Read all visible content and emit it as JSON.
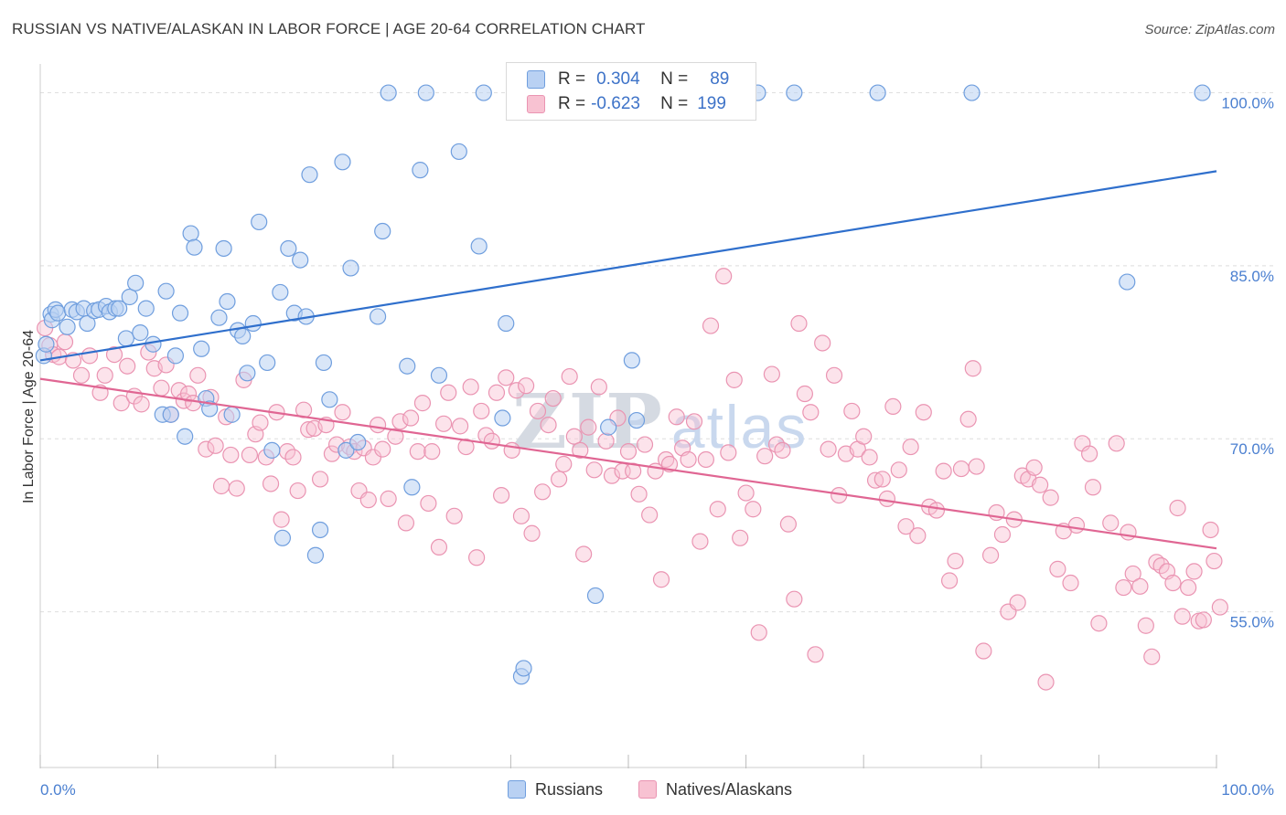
{
  "title": "RUSSIAN VS NATIVE/ALASKAN IN LABOR FORCE | AGE 20-64 CORRELATION CHART",
  "source": "Source: ZipAtlas.com",
  "colors": {
    "russians_fill": "#b9d1f3",
    "russians_stroke": "#6f9ede",
    "russians_line": "#2f6fcc",
    "natives_fill": "#f8c2d2",
    "natives_stroke": "#ea94b2",
    "natives_line": "#e06693",
    "tick_text": "#4a7fd0",
    "grid": "#dedede"
  },
  "legend": {
    "rows": [
      {
        "r_label": "R =",
        "r_value": "0.304",
        "n_label": "N =",
        "n_value": "89"
      },
      {
        "r_label": "R =",
        "r_value": "-0.623",
        "n_label": "N =",
        "n_value": "199"
      }
    ]
  },
  "bottom_legend": [
    "Russians",
    "Natives/Alaskans"
  ],
  "watermark": {
    "zip": "ZIP",
    "atlas": "atlas"
  },
  "chart_data": {
    "type": "scatter",
    "title": "RUSSIAN VS NATIVE/ALASKAN IN LABOR FORCE | AGE 20-64 CORRELATION CHART",
    "xlabel": "",
    "ylabel": "In Labor Force | Age 20-64",
    "xlim": [
      0,
      100
    ],
    "ylim": [
      41.5,
      102.5
    ],
    "x_tick_labels": [
      "0.0%",
      "100.0%"
    ],
    "y_ticks": [
      55,
      70,
      85,
      100
    ],
    "y_tick_labels": [
      "55.0%",
      "70.0%",
      "85.0%",
      "100.0%"
    ],
    "grid": true,
    "legend_position": "top-center",
    "series": [
      {
        "name": "Russians",
        "R": 0.304,
        "N": 89,
        "trend": {
          "x": [
            0,
            100
          ],
          "y": [
            76.8,
            93.2
          ]
        },
        "points": [
          [
            0.3,
            77.2
          ],
          [
            0.5,
            78.2
          ],
          [
            0.9,
            80.8
          ],
          [
            1.0,
            80.3
          ],
          [
            1.3,
            81.2
          ],
          [
            1.5,
            80.9
          ],
          [
            2.3,
            79.7
          ],
          [
            2.7,
            81.2
          ],
          [
            3.1,
            81.0
          ],
          [
            3.7,
            81.3
          ],
          [
            4.0,
            80.0
          ],
          [
            4.6,
            81.1
          ],
          [
            5.0,
            81.2
          ],
          [
            5.6,
            81.5
          ],
          [
            5.9,
            81.0
          ],
          [
            6.4,
            81.3
          ],
          [
            6.7,
            81.3
          ],
          [
            7.3,
            78.7
          ],
          [
            7.6,
            82.3
          ],
          [
            8.1,
            83.5
          ],
          [
            8.5,
            79.2
          ],
          [
            9.0,
            81.3
          ],
          [
            9.6,
            78.2
          ],
          [
            10.4,
            72.1
          ],
          [
            10.7,
            82.8
          ],
          [
            11.1,
            72.1
          ],
          [
            11.5,
            77.2
          ],
          [
            11.9,
            80.9
          ],
          [
            12.3,
            70.2
          ],
          [
            12.8,
            87.8
          ],
          [
            13.1,
            86.6
          ],
          [
            13.7,
            77.8
          ],
          [
            14.1,
            73.5
          ],
          [
            14.4,
            72.6
          ],
          [
            15.2,
            80.5
          ],
          [
            15.6,
            86.5
          ],
          [
            15.9,
            81.9
          ],
          [
            16.3,
            72.1
          ],
          [
            16.8,
            79.4
          ],
          [
            17.2,
            78.9
          ],
          [
            17.6,
            75.7
          ],
          [
            18.1,
            80.0
          ],
          [
            18.6,
            88.8
          ],
          [
            19.3,
            76.6
          ],
          [
            19.7,
            69.0
          ],
          [
            20.4,
            82.7
          ],
          [
            20.6,
            61.4
          ],
          [
            21.1,
            86.5
          ],
          [
            21.6,
            80.9
          ],
          [
            22.1,
            85.5
          ],
          [
            22.6,
            80.6
          ],
          [
            22.9,
            92.9
          ],
          [
            23.4,
            59.9
          ],
          [
            23.8,
            62.1
          ],
          [
            24.1,
            76.6
          ],
          [
            24.6,
            73.4
          ],
          [
            25.7,
            94.0
          ],
          [
            26.0,
            69.0
          ],
          [
            26.4,
            84.8
          ],
          [
            27.0,
            69.7
          ],
          [
            28.7,
            80.6
          ],
          [
            29.1,
            88.0
          ],
          [
            29.6,
            100.0
          ],
          [
            31.2,
            76.3
          ],
          [
            31.6,
            65.8
          ],
          [
            32.3,
            93.3
          ],
          [
            32.8,
            100.0
          ],
          [
            33.9,
            75.5
          ],
          [
            35.6,
            94.9
          ],
          [
            37.3,
            86.7
          ],
          [
            37.7,
            100.0
          ],
          [
            39.3,
            71.8
          ],
          [
            39.6,
            80.0
          ],
          [
            40.9,
            49.4
          ],
          [
            41.1,
            50.1
          ],
          [
            42.5,
            100.0
          ],
          [
            45.1,
            100.0
          ],
          [
            47.2,
            56.4
          ],
          [
            48.3,
            71.0
          ],
          [
            50.3,
            76.8
          ],
          [
            50.7,
            71.6
          ],
          [
            55.5,
            100.0
          ],
          [
            57.0,
            100.0
          ],
          [
            61.0,
            100.0
          ],
          [
            64.1,
            100.0
          ],
          [
            71.2,
            100.0
          ],
          [
            79.2,
            100.0
          ],
          [
            92.4,
            83.6
          ],
          [
            98.8,
            100.0
          ]
        ]
      },
      {
        "name": "Natives/Alaskans",
        "R": -0.623,
        "N": 199,
        "trend": {
          "x": [
            0,
            100
          ],
          "y": [
            75.2,
            60.5
          ]
        },
        "points": [
          [
            0.4,
            79.6
          ],
          [
            0.8,
            78.1
          ],
          [
            1.1,
            77.3
          ],
          [
            1.6,
            77.1
          ],
          [
            2.1,
            78.4
          ],
          [
            2.8,
            76.8
          ],
          [
            3.5,
            75.5
          ],
          [
            4.2,
            77.2
          ],
          [
            5.1,
            74.0
          ],
          [
            5.5,
            75.5
          ],
          [
            6.3,
            77.3
          ],
          [
            6.9,
            73.1
          ],
          [
            7.4,
            76.3
          ],
          [
            8.0,
            73.7
          ],
          [
            8.6,
            73.0
          ],
          [
            9.2,
            77.5
          ],
          [
            9.7,
            76.1
          ],
          [
            10.3,
            74.4
          ],
          [
            10.7,
            76.4
          ],
          [
            11.1,
            72.1
          ],
          [
            11.8,
            74.2
          ],
          [
            12.2,
            73.3
          ],
          [
            12.6,
            73.9
          ],
          [
            13.0,
            73.1
          ],
          [
            13.4,
            75.5
          ],
          [
            14.1,
            69.1
          ],
          [
            14.5,
            73.6
          ],
          [
            14.9,
            69.4
          ],
          [
            15.4,
            65.9
          ],
          [
            15.8,
            71.9
          ],
          [
            16.2,
            68.6
          ],
          [
            16.7,
            65.7
          ],
          [
            17.3,
            75.1
          ],
          [
            17.8,
            68.6
          ],
          [
            18.3,
            70.4
          ],
          [
            18.7,
            71.4
          ],
          [
            19.2,
            68.4
          ],
          [
            19.6,
            66.1
          ],
          [
            20.1,
            72.3
          ],
          [
            20.5,
            63.0
          ],
          [
            21.0,
            68.9
          ],
          [
            21.5,
            68.4
          ],
          [
            21.9,
            65.5
          ],
          [
            22.4,
            72.5
          ],
          [
            22.8,
            70.8
          ],
          [
            23.3,
            70.9
          ],
          [
            23.8,
            66.5
          ],
          [
            24.3,
            71.2
          ],
          [
            24.8,
            68.7
          ],
          [
            25.2,
            69.5
          ],
          [
            25.7,
            72.3
          ],
          [
            26.3,
            69.3
          ],
          [
            26.7,
            68.9
          ],
          [
            27.1,
            65.5
          ],
          [
            27.5,
            69.2
          ],
          [
            27.9,
            64.7
          ],
          [
            28.3,
            68.4
          ],
          [
            28.7,
            71.2
          ],
          [
            29.1,
            69.1
          ],
          [
            29.6,
            64.8
          ],
          [
            30.2,
            70.2
          ],
          [
            30.6,
            71.5
          ],
          [
            31.1,
            62.7
          ],
          [
            31.5,
            71.8
          ],
          [
            32.1,
            68.9
          ],
          [
            32.5,
            73.1
          ],
          [
            33.0,
            64.4
          ],
          [
            33.3,
            68.9
          ],
          [
            33.9,
            60.6
          ],
          [
            34.3,
            71.3
          ],
          [
            34.7,
            74.0
          ],
          [
            35.2,
            63.3
          ],
          [
            35.7,
            71.1
          ],
          [
            36.2,
            69.3
          ],
          [
            36.6,
            74.5
          ],
          [
            37.1,
            59.7
          ],
          [
            37.5,
            72.4
          ],
          [
            37.9,
            70.3
          ],
          [
            38.4,
            69.8
          ],
          [
            38.8,
            74.0
          ],
          [
            39.2,
            65.1
          ],
          [
            39.6,
            75.3
          ],
          [
            40.1,
            69.0
          ],
          [
            40.5,
            74.2
          ],
          [
            40.9,
            63.3
          ],
          [
            41.3,
            74.6
          ],
          [
            41.8,
            61.8
          ],
          [
            42.3,
            72.4
          ],
          [
            42.7,
            65.4
          ],
          [
            43.2,
            71.2
          ],
          [
            43.6,
            73.5
          ],
          [
            44.1,
            66.5
          ],
          [
            44.5,
            67.8
          ],
          [
            45.0,
            75.4
          ],
          [
            45.4,
            70.2
          ],
          [
            45.9,
            69.0
          ],
          [
            46.2,
            60.0
          ],
          [
            46.6,
            71.0
          ],
          [
            47.1,
            67.3
          ],
          [
            47.5,
            74.5
          ],
          [
            48.1,
            69.8
          ],
          [
            48.6,
            66.8
          ],
          [
            49.1,
            71.8
          ],
          [
            49.5,
            67.2
          ],
          [
            50.0,
            68.9
          ],
          [
            50.4,
            67.2
          ],
          [
            50.9,
            65.2
          ],
          [
            51.4,
            69.5
          ],
          [
            51.8,
            63.4
          ],
          [
            52.3,
            67.2
          ],
          [
            52.8,
            57.8
          ],
          [
            53.2,
            68.2
          ],
          [
            53.5,
            67.8
          ],
          [
            54.1,
            71.9
          ],
          [
            54.6,
            69.2
          ],
          [
            55.1,
            68.2
          ],
          [
            55.6,
            71.5
          ],
          [
            56.1,
            61.1
          ],
          [
            56.6,
            68.2
          ],
          [
            57.0,
            79.8
          ],
          [
            57.6,
            63.9
          ],
          [
            58.1,
            84.1
          ],
          [
            58.5,
            68.8
          ],
          [
            59.0,
            75.1
          ],
          [
            59.5,
            61.4
          ],
          [
            60.0,
            65.3
          ],
          [
            60.6,
            63.9
          ],
          [
            61.1,
            53.2
          ],
          [
            61.6,
            68.5
          ],
          [
            62.2,
            75.6
          ],
          [
            62.6,
            69.5
          ],
          [
            63.1,
            69.0
          ],
          [
            63.6,
            62.6
          ],
          [
            64.1,
            56.1
          ],
          [
            64.5,
            80.0
          ],
          [
            65.0,
            73.9
          ],
          [
            65.5,
            72.3
          ],
          [
            65.9,
            51.3
          ],
          [
            66.5,
            78.3
          ],
          [
            67.0,
            69.1
          ],
          [
            67.5,
            75.5
          ],
          [
            67.9,
            65.1
          ],
          [
            68.5,
            68.7
          ],
          [
            69.0,
            72.4
          ],
          [
            69.5,
            69.1
          ],
          [
            70.0,
            70.2
          ],
          [
            70.5,
            68.4
          ],
          [
            71.0,
            66.4
          ],
          [
            71.6,
            66.5
          ],
          [
            72.0,
            64.8
          ],
          [
            72.5,
            72.8
          ],
          [
            73.0,
            67.3
          ],
          [
            73.6,
            62.4
          ],
          [
            74.0,
            69.3
          ],
          [
            74.6,
            61.6
          ],
          [
            75.1,
            72.3
          ],
          [
            75.6,
            64.1
          ],
          [
            76.2,
            63.8
          ],
          [
            76.8,
            67.2
          ],
          [
            77.3,
            57.7
          ],
          [
            77.8,
            59.4
          ],
          [
            78.3,
            67.4
          ],
          [
            78.9,
            71.7
          ],
          [
            79.3,
            76.1
          ],
          [
            79.6,
            67.6
          ],
          [
            80.2,
            51.6
          ],
          [
            80.8,
            59.9
          ],
          [
            81.3,
            63.6
          ],
          [
            81.8,
            61.7
          ],
          [
            82.3,
            55.0
          ],
          [
            82.8,
            63.0
          ],
          [
            83.1,
            55.8
          ],
          [
            83.5,
            66.8
          ],
          [
            84.0,
            66.5
          ],
          [
            84.5,
            67.5
          ],
          [
            85.0,
            66.0
          ],
          [
            85.5,
            48.9
          ],
          [
            85.9,
            64.9
          ],
          [
            86.5,
            58.7
          ],
          [
            87.0,
            62.0
          ],
          [
            87.6,
            57.5
          ],
          [
            88.1,
            62.5
          ],
          [
            88.6,
            69.6
          ],
          [
            89.2,
            68.7
          ],
          [
            89.5,
            65.8
          ],
          [
            90.0,
            54.0
          ],
          [
            91.0,
            62.7
          ],
          [
            91.5,
            69.6
          ],
          [
            92.1,
            57.1
          ],
          [
            92.5,
            61.9
          ],
          [
            92.9,
            58.3
          ],
          [
            93.5,
            57.2
          ],
          [
            94.0,
            53.8
          ],
          [
            94.5,
            51.1
          ],
          [
            94.9,
            59.3
          ],
          [
            95.3,
            59.0
          ],
          [
            95.8,
            58.5
          ],
          [
            96.3,
            57.5
          ],
          [
            96.7,
            64.0
          ],
          [
            97.1,
            54.6
          ],
          [
            97.6,
            57.1
          ],
          [
            98.1,
            58.5
          ],
          [
            98.5,
            54.2
          ],
          [
            98.9,
            54.3
          ],
          [
            99.5,
            62.1
          ],
          [
            99.8,
            59.4
          ],
          [
            100.3,
            55.4
          ]
        ]
      }
    ]
  }
}
